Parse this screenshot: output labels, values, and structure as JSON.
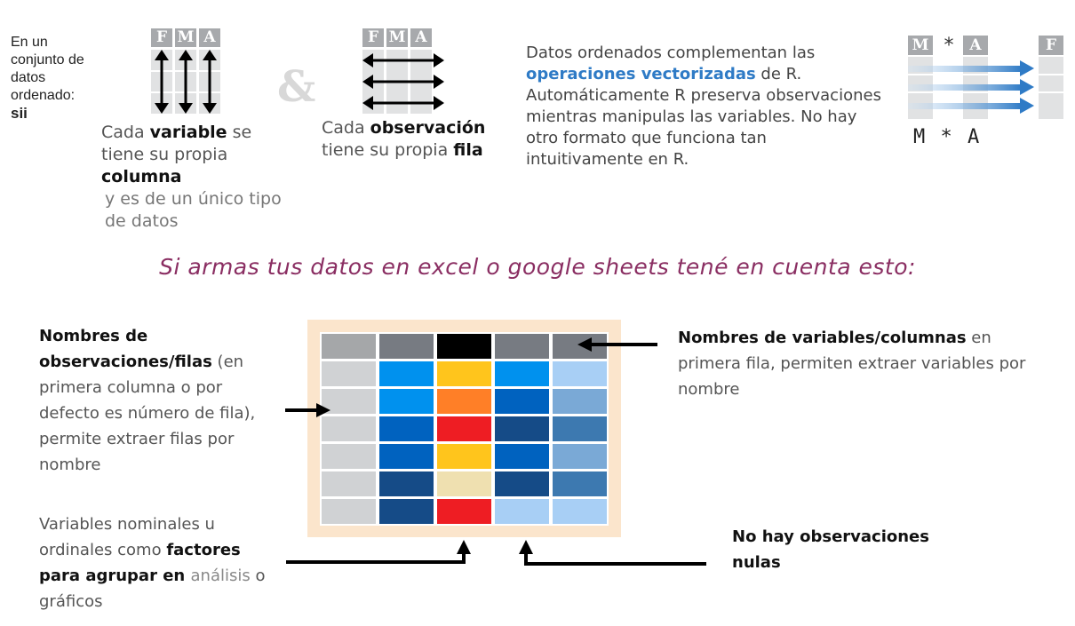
{
  "intro": {
    "text": "En un conjunto de datos ordenado:",
    "emphasis": "sii"
  },
  "fma_letters": [
    "F",
    "M",
    "A"
  ],
  "variable_caption": {
    "pre": "Cada ",
    "bold1": "variable",
    "mid": " se tiene su propia ",
    "bold2": "columna",
    "tail": "y es de un único tipo de datos"
  },
  "ampersand": "&",
  "observation_caption": {
    "pre": "Cada ",
    "bold1": "observación",
    "mid": " tiene su propia ",
    "bold2": "fila"
  },
  "vector_text": {
    "line1": "Datos ordenados complementan las",
    "highlight": "operaciones vectorizadas",
    "after_highlight": " de R.",
    "rest": "Automáticamente R preserva observaciones mientras manipulas las variables. No hay otro formato que funciona tan intuitivamente en R."
  },
  "vector_diagram": {
    "left_labels": [
      "M",
      "*",
      "A"
    ],
    "right_label": "F",
    "code": "M * A"
  },
  "subtitle": "Si armas tus datos en excel  o google sheets tené en cuenta esto:",
  "notes": {
    "rows": {
      "bold": "Nombres de observaciones/filas",
      "rest": " (en primera columna o por defecto es número de fila), permite extraer filas por nombre"
    },
    "columns": {
      "bold": "Nombres de variables/columnas",
      "rest": " en primera fila, permiten  extraer variables por nombre"
    },
    "factors": {
      "pre": "Variables nominales u ordinales como ",
      "bold": "factores",
      "mid": " para agrupar en ",
      "gray": "análisis",
      "tail": " o gráficos"
    },
    "nulls": {
      "bold": "No hay observaciones nulas"
    }
  },
  "colors": {
    "header_gray": "#a7a9ac",
    "accent_blue": "#2f7bc6",
    "subtitle": "#8a2e62",
    "frame": "#fbe5cc"
  },
  "grid_colors": [
    [
      "#a5a7a9",
      "#777b82",
      "#000000",
      "#777b82",
      "#777b82"
    ],
    [
      "#d0d2d4",
      "#0091ee",
      "#ffc51c",
      "#0091ee",
      "#a8cff5"
    ],
    [
      "#d0d2d4",
      "#0091ee",
      "#ff7f27",
      "#0062bf",
      "#7aa9d6"
    ],
    [
      "#d0d2d4",
      "#0062bf",
      "#ee1d23",
      "#154b87",
      "#3d79b0"
    ],
    [
      "#d0d2d4",
      "#0062bf",
      "#ffc51c",
      "#0062bf",
      "#7aa9d6"
    ],
    [
      "#d0d2d4",
      "#154b87",
      "#efe0b0",
      "#154b87",
      "#3d79b0"
    ],
    [
      "#d0d2d4",
      "#154b87",
      "#ee1d23",
      "#a8cff5",
      "#a8cff5"
    ]
  ]
}
